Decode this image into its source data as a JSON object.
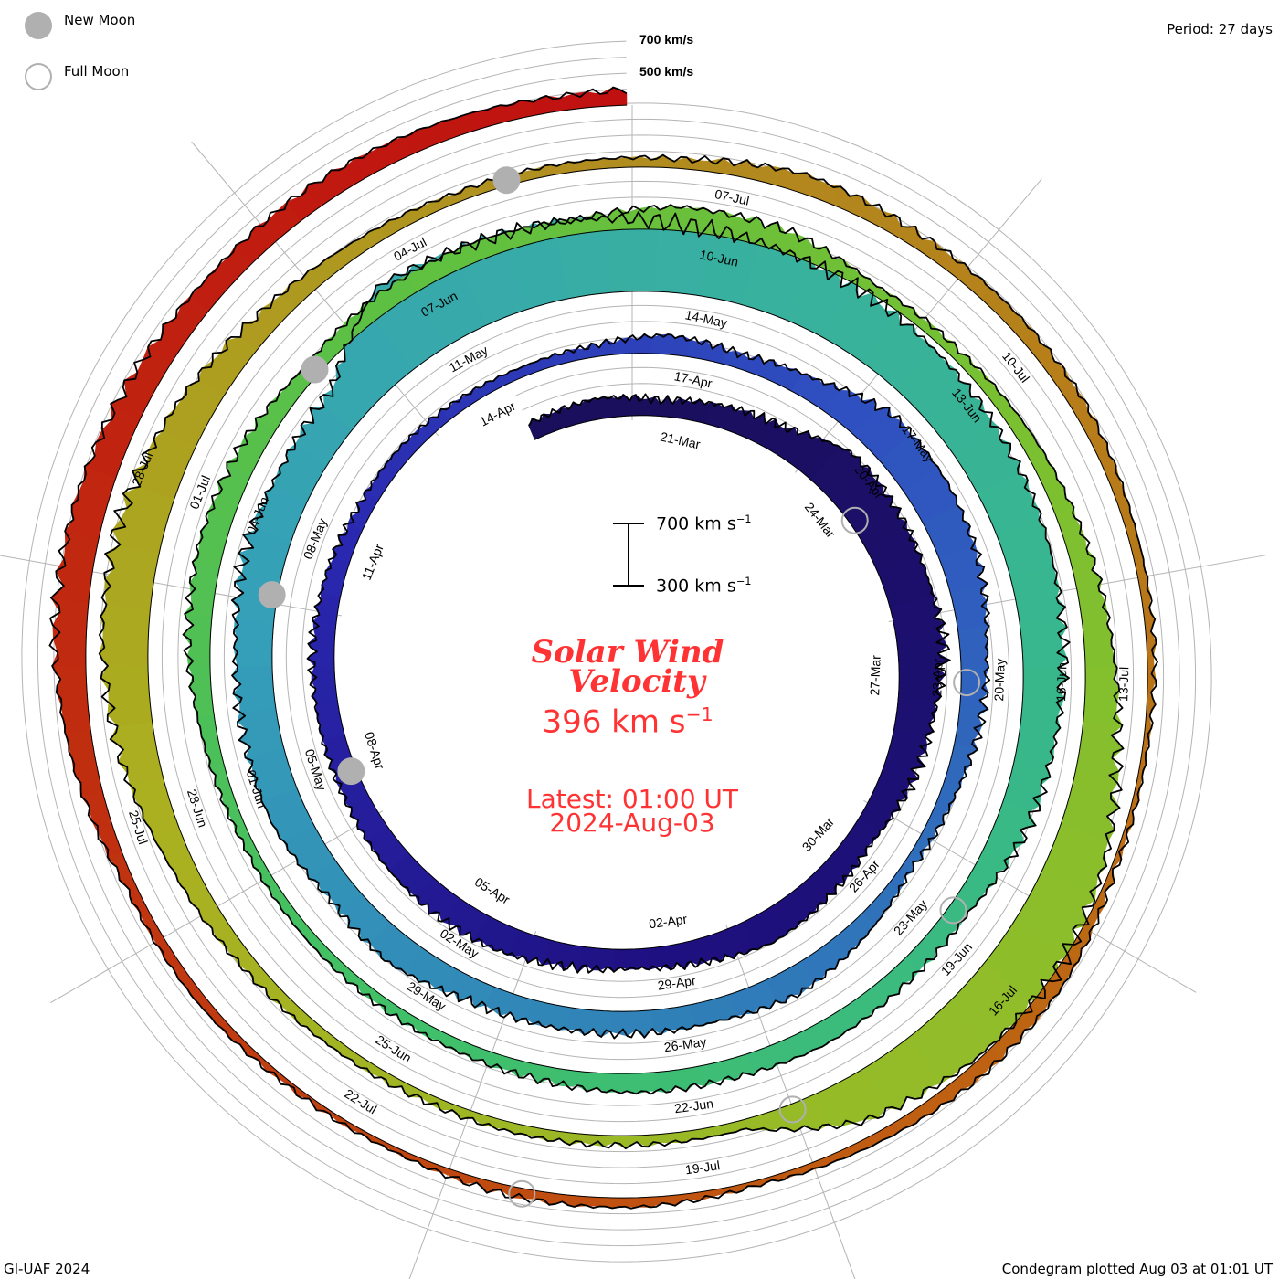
{
  "legend": {
    "new_moon_label": "New Moon",
    "full_moon_label": "Full Moon",
    "new_moon_color": "#b0b0b0",
    "full_moon_color": "#b0b0b0"
  },
  "period_label": "Period: 27 days",
  "credit": "GI-UAF 2024",
  "plotted": "Condegram plotted Aug 03 at 01:01 UT",
  "center": {
    "scale_top": "700 km s",
    "scale_bottom": "300 km s",
    "superscript": "−1",
    "title_line1": "Solar Wind",
    "title_line2": "Velocity",
    "current_value": "396 km s",
    "latest_line1": "Latest: 01:00 UT",
    "latest_line2": "2024-Aug-03",
    "text_color": "#ff3333"
  },
  "chart_data": {
    "type": "area",
    "title": "Solar Wind Velocity",
    "subtype": "condegram spiral",
    "period_days": 27,
    "units": "km/s",
    "baseline_value": 300,
    "gridline_values": [
      400,
      500,
      600,
      700
    ],
    "gridline_labels": [
      "700 km/s",
      "500 km/s"
    ],
    "reference_time": "2024-03-21T01:00Z",
    "latest_time": "2024-08-03T01:00Z",
    "latest_value": 396,
    "daily_start_date": "2024-03-19",
    "daily_values": [
      410,
      430,
      400,
      440,
      470,
      600,
      590,
      580,
      590,
      530,
      500,
      450,
      470,
      500,
      450,
      420,
      440,
      470,
      470,
      460,
      440,
      440,
      440,
      420,
      390,
      390,
      370,
      360,
      370,
      420,
      390,
      440,
      560,
      560,
      530,
      470,
      440,
      390,
      360,
      420,
      470,
      440,
      440,
      440,
      440,
      500,
      470,
      530,
      530,
      530,
      560,
      540,
      560,
      850,
      800,
      780,
      730,
      700,
      670,
      640,
      610,
      590,
      560,
      530,
      500,
      420,
      420,
      440,
      420,
      420,
      390,
      370,
      360,
      360,
      360,
      390,
      440,
      460,
      440,
      390,
      420,
      420,
      390,
      450,
      440,
      360,
      360,
      390,
      420,
      470,
      530,
      640,
      700,
      670,
      590,
      360,
      360,
      360,
      350,
      360,
      390,
      440,
      530,
      590,
      590,
      530,
      440,
      390,
      360,
      360,
      360,
      420,
      390,
      390,
      390,
      360,
      350,
      330,
      330,
      390,
      390,
      360,
      330,
      360,
      360,
      330,
      330,
      360,
      360,
      440,
      500,
      500,
      470,
      440,
      440,
      420,
      390
    ],
    "date_labels": [
      "21-Mar",
      "24-Mar",
      "27-Mar",
      "30-Mar",
      "02-Apr",
      "05-Apr",
      "08-Apr",
      "11-Apr",
      "14-Apr",
      "17-Apr",
      "20-Apr",
      "23-Apr",
      "26-Apr",
      "29-Apr",
      "02-May",
      "05-May",
      "08-May",
      "11-May",
      "14-May",
      "17-May",
      "20-May",
      "23-May",
      "26-May",
      "29-May",
      "01-Jun",
      "04-Jun",
      "07-Jun",
      "10-Jun",
      "13-Jun",
      "16-Jun",
      "19-Jun",
      "22-Jun",
      "25-Jun",
      "28-Jun",
      "01-Jul",
      "04-Jul",
      "07-Jul",
      "10-Jul",
      "13-Jul",
      "16-Jul",
      "19-Jul",
      "22-Jul",
      "25-Jul",
      "28-Jul"
    ],
    "new_moons": [
      "2024-04-08T18:21Z",
      "2024-05-08T03:22Z",
      "2024-06-06T12:38Z",
      "2024-07-05T22:57Z"
    ],
    "full_moons": [
      "2024-03-25T07:00Z",
      "2024-04-23T23:49Z",
      "2024-05-23T13:53Z",
      "2024-06-22T01:08Z",
      "2024-07-21T10:17Z"
    ],
    "color_stops": [
      {
        "day": 0,
        "color": "#1a0f5c"
      },
      {
        "day": 13,
        "color": "#1e1080"
      },
      {
        "day": 22,
        "color": "#2a28b0"
      },
      {
        "day": 30,
        "color": "#2f50c0"
      },
      {
        "day": 40,
        "color": "#3080b8"
      },
      {
        "day": 48,
        "color": "#35a0b8"
      },
      {
        "day": 55,
        "color": "#38b0a0"
      },
      {
        "day": 62,
        "color": "#38b888"
      },
      {
        "day": 70,
        "color": "#40c068"
      },
      {
        "day": 79,
        "color": "#60c040"
      },
      {
        "day": 86,
        "color": "#7cc030"
      },
      {
        "day": 92,
        "color": "#94bc28"
      },
      {
        "day": 100,
        "color": "#aab020"
      },
      {
        "day": 107,
        "color": "#b09020"
      },
      {
        "day": 114,
        "color": "#b87818"
      },
      {
        "day": 120,
        "color": "#c05a10"
      },
      {
        "day": 127,
        "color": "#c03010"
      },
      {
        "day": 135,
        "color": "#c01010"
      }
    ]
  }
}
